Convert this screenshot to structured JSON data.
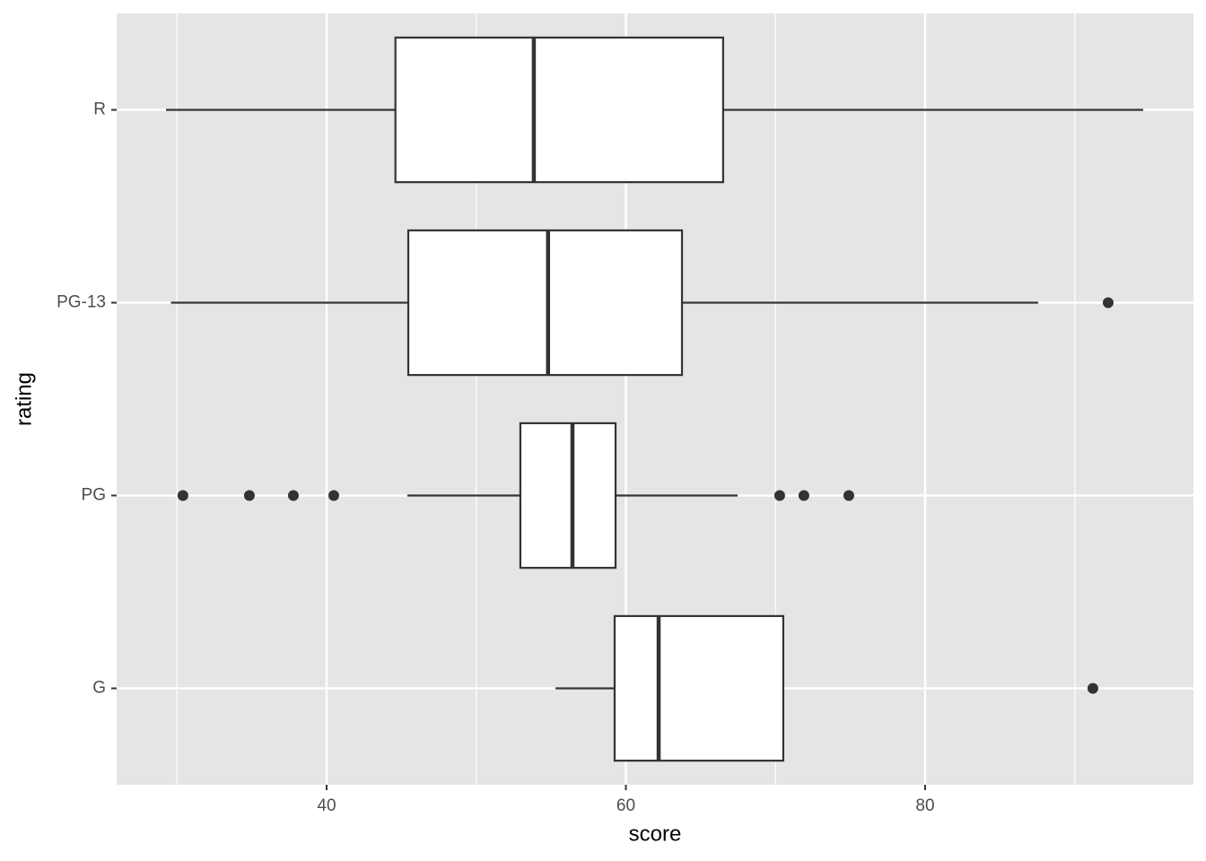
{
  "chart_data": {
    "type": "boxplot",
    "orientation": "horizontal",
    "x_label": "score",
    "y_label": "rating",
    "categories": [
      "G",
      "PG",
      "PG-13",
      "R"
    ],
    "boxes": [
      {
        "min": 55.3,
        "q1": 59.25,
        "median": 62.19,
        "q3": 70.52,
        "max": 70.52,
        "outliers": [
          91.21
        ]
      },
      {
        "min": 45.4,
        "q1": 52.95,
        "median": 56.43,
        "q3": 59.31,
        "max": 67.47,
        "outliers": [
          30.4,
          34.84,
          37.78,
          40.48,
          70.28,
          71.9,
          74.9
        ]
      },
      {
        "min": 29.6,
        "q1": 45.46,
        "median": 54.8,
        "q3": 63.75,
        "max": 87.55,
        "outliers": [
          92.23
        ]
      },
      {
        "min": 29.27,
        "q1": 44.6,
        "median": 53.85,
        "q3": 66.5,
        "max": 94.57,
        "outliers": []
      }
    ],
    "xlim": [
      25.97,
      97.93
    ],
    "xticks": [
      40,
      60,
      80
    ],
    "minor_xticks": [
      30,
      50,
      70,
      90
    ],
    "grid": true,
    "panel_color": "#e5e5e5",
    "box_color": "#ffffff",
    "line_color": "#333333"
  }
}
